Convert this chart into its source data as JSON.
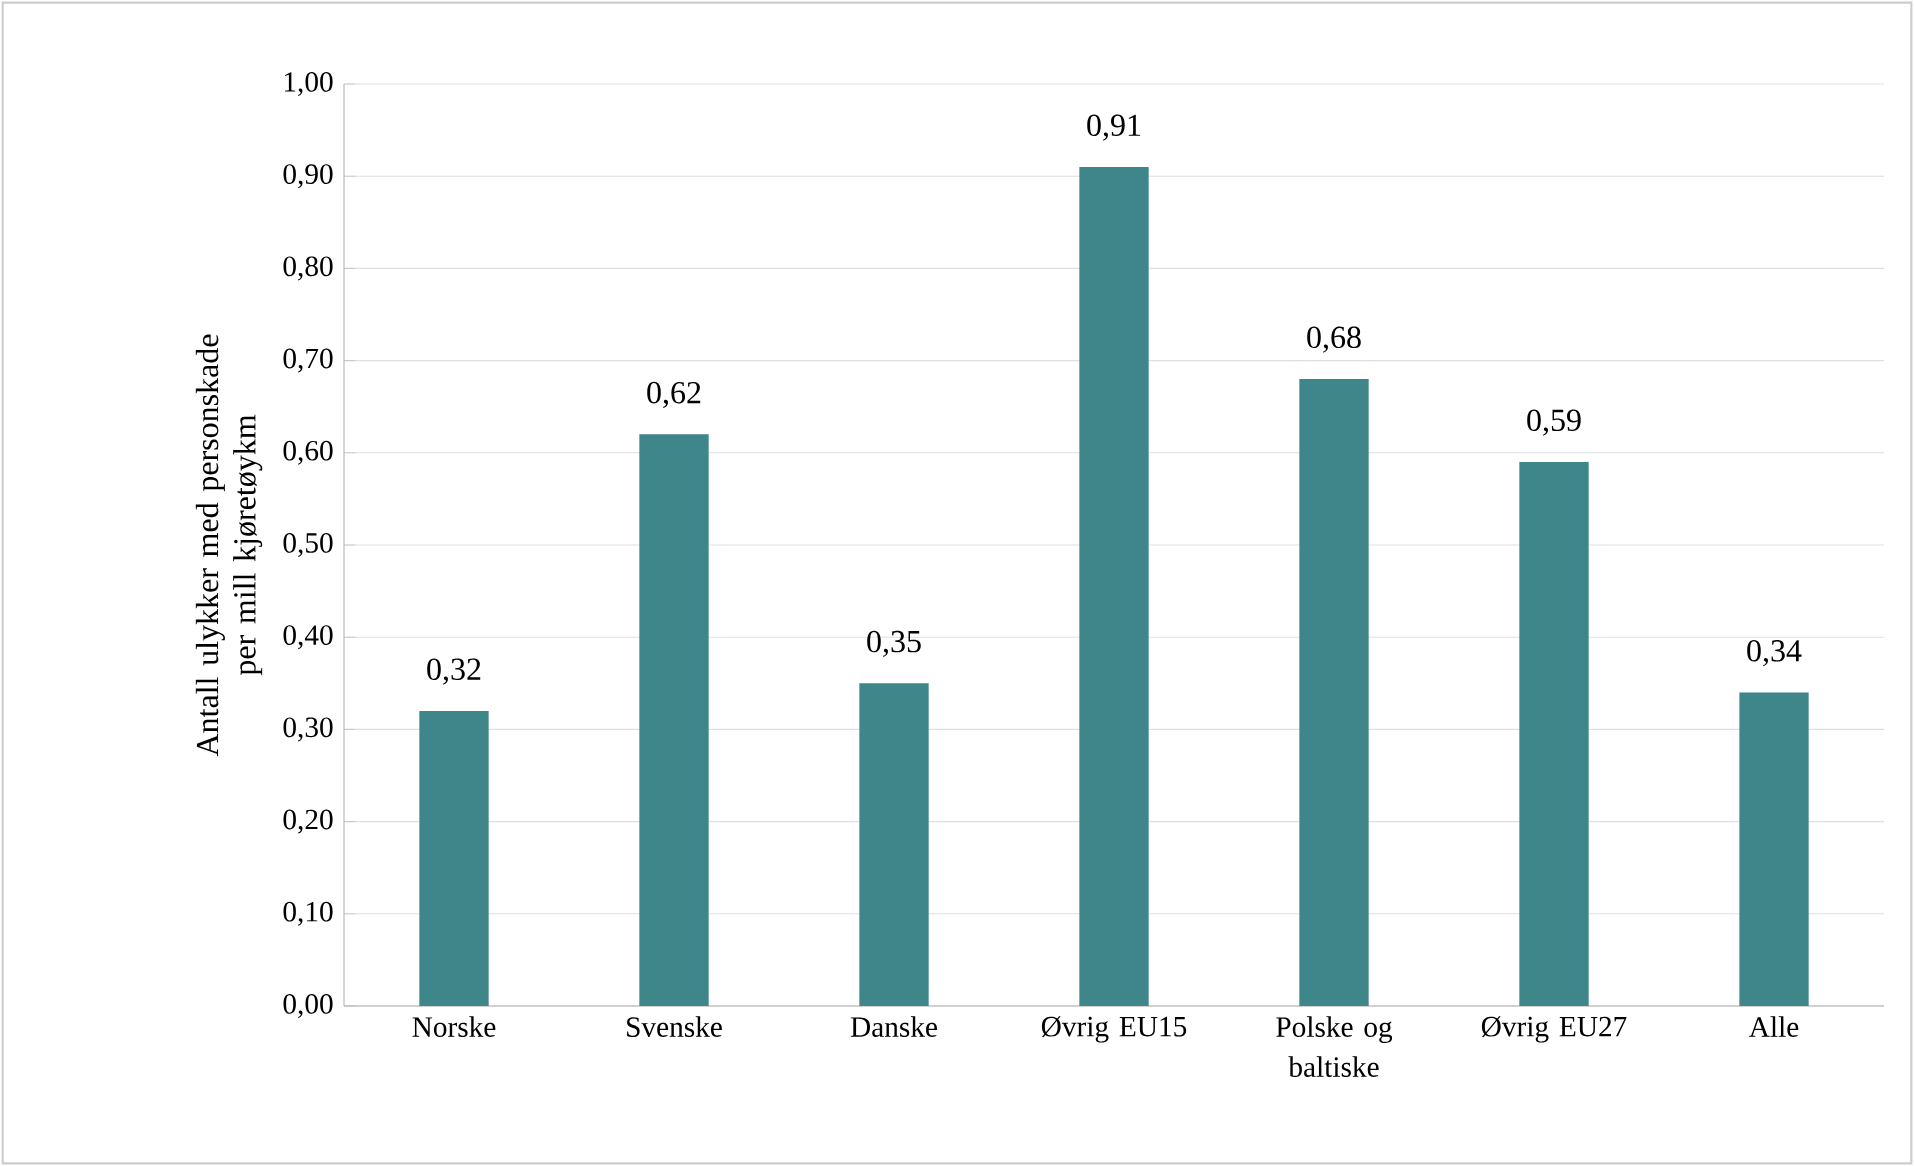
{
  "chart_data": {
    "type": "bar",
    "ylabel": "Antall ulykker med personskade per mill kjøretøykm",
    "categories": [
      "Norske",
      "Svenske",
      "Danske",
      "Øvrig EU15",
      "Polske og baltiske",
      "Øvrig EU27",
      "Alle"
    ],
    "values": [
      0.32,
      0.62,
      0.35,
      0.91,
      0.68,
      0.59,
      0.34
    ],
    "value_labels": [
      "0,32",
      "0,62",
      "0,35",
      "0,91",
      "0,68",
      "0,59",
      "0,34"
    ],
    "color": "#3f868a",
    "ylim": [
      0,
      1
    ],
    "yticks": [
      {
        "value": 0,
        "label": "0,00"
      },
      {
        "value": 0.1,
        "label": "0,10"
      },
      {
        "value": 0.2,
        "label": "0,20"
      },
      {
        "value": 0.3,
        "label": "0,30"
      },
      {
        "value": 0.4,
        "label": "0,40"
      },
      {
        "value": 0.5,
        "label": "0,50"
      },
      {
        "value": 0.6,
        "label": "0,60"
      },
      {
        "value": 0.7,
        "label": "0,70"
      },
      {
        "value": 0.8,
        "label": "0,80"
      },
      {
        "value": 0.9,
        "label": "0,90"
      },
      {
        "value": 1,
        "label": "1,00"
      }
    ],
    "grid": "y"
  }
}
